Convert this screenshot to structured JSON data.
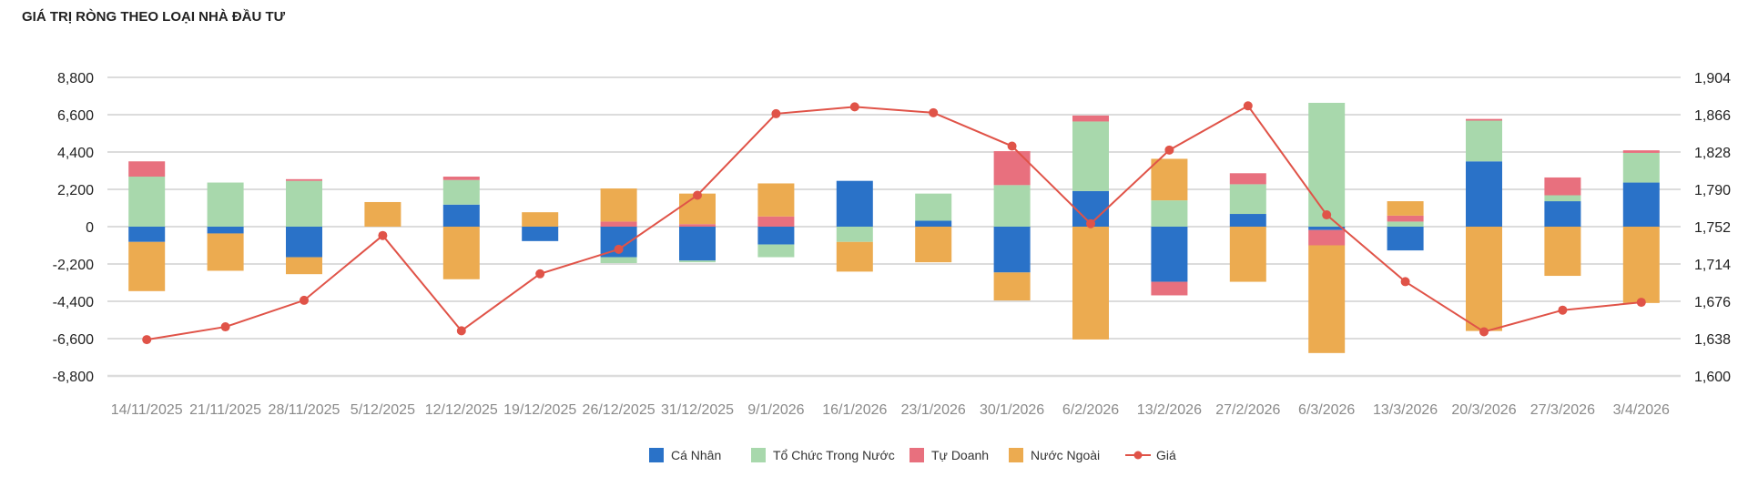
{
  "title": "GIÁ TRỊ RÒNG THEO LOẠI NHÀ ĐẦU TƯ",
  "colors": {
    "ca_nhan": "#2a72c8",
    "to_chuc": "#a8d8ac",
    "tu_doanh": "#e8707e",
    "nuoc_ngoai": "#ecab50",
    "gia": "#e05348",
    "grid": "#dcdcdc"
  },
  "chart_data": {
    "type": "bar",
    "stacked": true,
    "title": "GIÁ TRỊ RÒNG THEO LOẠI NHÀ ĐẦU TƯ",
    "categories": [
      "14/11/2025",
      "21/11/2025",
      "28/11/2025",
      "5/12/2025",
      "12/12/2025",
      "19/12/2025",
      "26/12/2025",
      "31/12/2025",
      "9/1/2026",
      "16/1/2026",
      "23/1/2026",
      "30/1/2026",
      "6/2/2026",
      "13/2/2026",
      "27/2/2026",
      "6/3/2026",
      "13/3/2026",
      "20/3/2026",
      "27/3/2026",
      "3/4/2026"
    ],
    "y_left": {
      "ylim": [
        -8800,
        8800
      ],
      "ticks": [
        -8800,
        -6600,
        -4400,
        -2200,
        0,
        2200,
        4400,
        6600,
        8800
      ],
      "tick_labels": [
        "-8,800",
        "-6,600",
        "-4,400",
        "-2,200",
        "0",
        "2,200",
        "4,400",
        "6,600",
        "8,800"
      ]
    },
    "y_right": {
      "ylim": [
        1600,
        1904
      ],
      "ticks": [
        1600,
        1638,
        1676,
        1714,
        1752,
        1790,
        1828,
        1866,
        1904
      ],
      "tick_labels": [
        "1,600",
        "1,638",
        "1,676",
        "1,714",
        "1,752",
        "1,790",
        "1,828",
        "1,866",
        "1,904"
      ]
    },
    "series": [
      {
        "name": "Cá Nhân",
        "color_key": "ca_nhan",
        "kind": "bar",
        "values": [
          -900,
          -400,
          -1800,
          0,
          1300,
          -850,
          -1800,
          -2000,
          -1050,
          2700,
          350,
          -2700,
          2100,
          -3250,
          750,
          -200,
          -1400,
          3850,
          1500,
          2600
        ]
      },
      {
        "name": "Tổ Chức Trong Nước",
        "color_key": "to_chuc",
        "kind": "bar",
        "values": [
          2950,
          2600,
          2700,
          0,
          1450,
          0,
          -350,
          -100,
          -750,
          -900,
          1600,
          2450,
          4100,
          1550,
          1750,
          7300,
          300,
          2400,
          350,
          1750
        ]
      },
      {
        "name": "Tự Doanh",
        "color_key": "tu_doanh",
        "kind": "bar",
        "values": [
          900,
          0,
          100,
          0,
          200,
          0,
          300,
          150,
          600,
          0,
          0,
          2000,
          350,
          -800,
          650,
          -900,
          350,
          100,
          1050,
          150
        ]
      },
      {
        "name": "Nước Ngoài",
        "color_key": "nuoc_ngoai",
        "kind": "bar",
        "values": [
          -2900,
          -2200,
          -1000,
          1450,
          -3100,
          850,
          1950,
          1800,
          1950,
          -1750,
          -2100,
          -1650,
          -6650,
          2450,
          -3250,
          -6350,
          850,
          -6150,
          -2900,
          -4500
        ]
      },
      {
        "name": "Giá",
        "color_key": "gia",
        "kind": "line",
        "axis": "right",
        "values": [
          1637,
          1650,
          1677,
          1743,
          1646,
          1704,
          1729,
          1784,
          1867,
          1874,
          1868,
          1834,
          1755,
          1830,
          1875,
          1764,
          1696,
          1645,
          1667,
          1675
        ]
      }
    ],
    "legend": {
      "position": "bottom-center",
      "entries": [
        "Cá Nhân",
        "Tổ Chức Trong Nước",
        "Tự Doanh",
        "Nước Ngoài",
        "Giá"
      ]
    },
    "grid": true
  }
}
